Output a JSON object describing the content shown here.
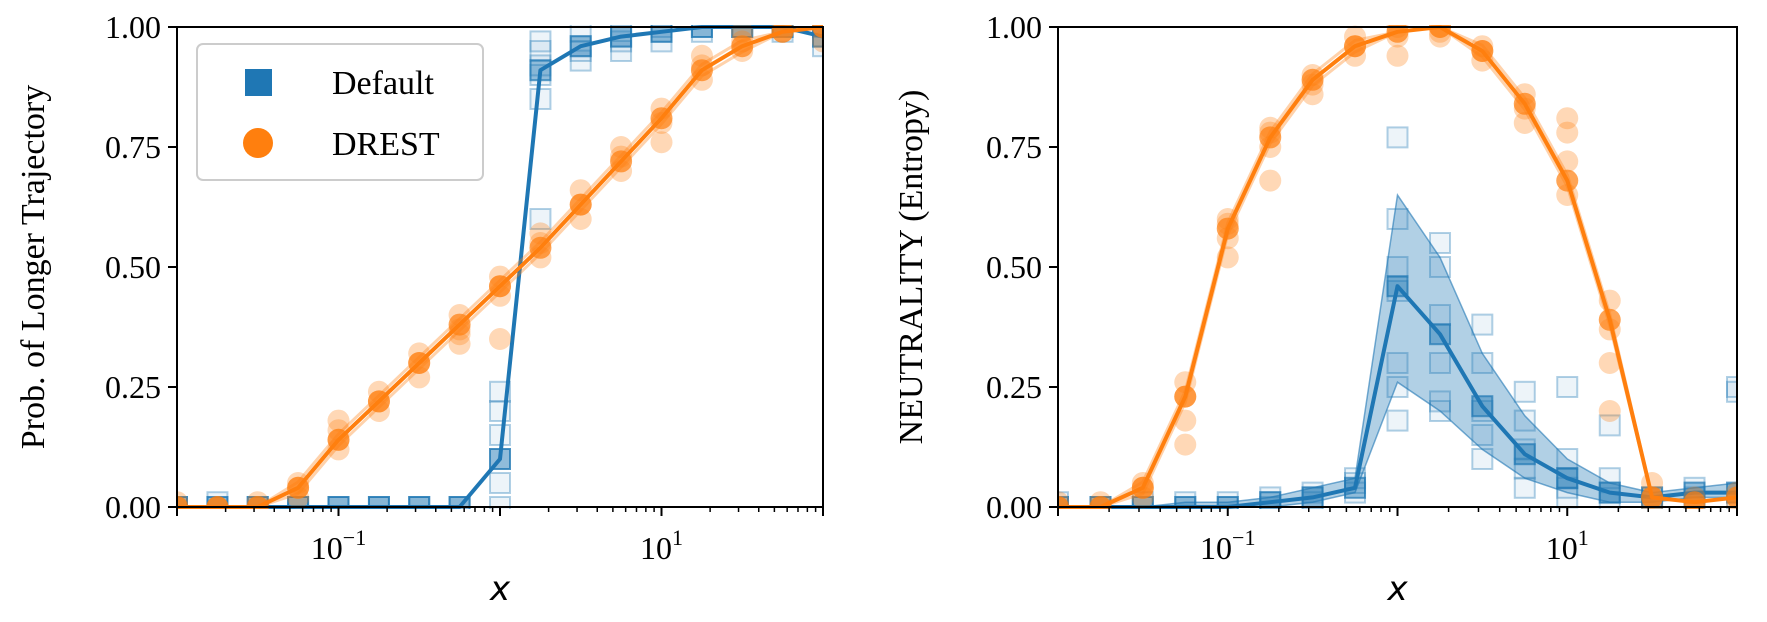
{
  "colors": {
    "default": "#1f77b4",
    "drest": "#ff7f0e"
  },
  "chart_data": [
    {
      "type": "line",
      "ylabel": "Prob. of Longer Trajectory",
      "xlabel": "x",
      "xscale": "log",
      "xlim": [
        0.01,
        100
      ],
      "ylim": [
        0.0,
        1.0
      ],
      "yticks": [
        "0.00",
        "0.25",
        "0.50",
        "0.75",
        "1.00"
      ],
      "xticks": [
        {
          "value": 0.1,
          "label": "10",
          "exp": "−1"
        },
        {
          "value": 10,
          "label": "10",
          "exp": "1"
        }
      ],
      "legend": {
        "position": "top-left",
        "entries": [
          "Default",
          "DREST"
        ]
      },
      "series": [
        {
          "name": "Default",
          "marker": "square",
          "x": [
            0.01,
            0.0178,
            0.0316,
            0.0562,
            0.1,
            0.178,
            0.316,
            0.562,
            1.0,
            1.78,
            3.16,
            5.62,
            10,
            17.8,
            31.6,
            56.2,
            100
          ],
          "mean": [
            0.0,
            0.0,
            0.0,
            0.0,
            0.0,
            0.0,
            0.0,
            0.0,
            0.1,
            0.91,
            0.96,
            0.98,
            0.99,
            1.0,
            1.0,
            1.0,
            0.98
          ],
          "scatter": [
            [
              0.0,
              0.0
            ],
            [
              0.0,
              0.01
            ],
            [
              0.0,
              0.0
            ],
            [
              0.0,
              0.0
            ],
            [
              0.0,
              0.0
            ],
            [
              0.0,
              0.0
            ],
            [
              0.0,
              0.0
            ],
            [
              0.0,
              0.0
            ],
            [
              0.0,
              0.05,
              0.1,
              0.15,
              0.2,
              0.24
            ],
            [
              0.9,
              0.92,
              0.95,
              0.97,
              0.85,
              0.6
            ],
            [
              0.93,
              0.96,
              0.99,
              0.95
            ],
            [
              0.95,
              0.97,
              1.0,
              0.98
            ],
            [
              0.97,
              0.99,
              1.0
            ],
            [
              0.99,
              1.0
            ],
            [
              1.0,
              1.0
            ],
            [
              0.99,
              1.0
            ],
            [
              0.96,
              0.98,
              1.0
            ]
          ]
        },
        {
          "name": "DREST",
          "marker": "circle",
          "x": [
            0.01,
            0.0178,
            0.0316,
            0.0562,
            0.1,
            0.178,
            0.316,
            0.562,
            1.0,
            1.78,
            3.16,
            5.62,
            10,
            17.8,
            31.6,
            56.2,
            100
          ],
          "mean": [
            0.0,
            0.0,
            0.0,
            0.04,
            0.14,
            0.22,
            0.3,
            0.38,
            0.46,
            0.54,
            0.63,
            0.72,
            0.81,
            0.91,
            0.96,
            0.99,
            1.0
          ],
          "scatter": [
            [
              0.0,
              0.01
            ],
            [
              0.0,
              0.0
            ],
            [
              0.0,
              0.01
            ],
            [
              0.02,
              0.04,
              0.05
            ],
            [
              0.12,
              0.14,
              0.16,
              0.18
            ],
            [
              0.2,
              0.22,
              0.24
            ],
            [
              0.27,
              0.3,
              0.32
            ],
            [
              0.34,
              0.37,
              0.4,
              0.36
            ],
            [
              0.44,
              0.46,
              0.48,
              0.35
            ],
            [
              0.52,
              0.55,
              0.57
            ],
            [
              0.6,
              0.63,
              0.66
            ],
            [
              0.7,
              0.73,
              0.75
            ],
            [
              0.76,
              0.8,
              0.83
            ],
            [
              0.89,
              0.92,
              0.94
            ],
            [
              0.95,
              0.97,
              0.99
            ],
            [
              0.99,
              1.0
            ],
            [
              0.97,
              1.0
            ]
          ]
        }
      ]
    },
    {
      "type": "line",
      "ylabel": "NEUTRALITY (Entropy)",
      "xlabel": "x",
      "xscale": "log",
      "xlim": [
        0.01,
        100
      ],
      "ylim": [
        0.0,
        1.0
      ],
      "yticks": [
        "0.00",
        "0.25",
        "0.50",
        "0.75",
        "1.00"
      ],
      "xticks": [
        {
          "value": 0.1,
          "label": "10",
          "exp": "−1"
        },
        {
          "value": 10,
          "label": "10",
          "exp": "1"
        }
      ],
      "series": [
        {
          "name": "Default",
          "marker": "square",
          "x": [
            0.01,
            0.0178,
            0.0316,
            0.0562,
            0.1,
            0.178,
            0.316,
            0.562,
            1.0,
            1.78,
            3.16,
            5.62,
            10,
            17.8,
            31.6,
            56.2,
            100
          ],
          "mean": [
            0.0,
            0.0,
            0.0,
            0.0,
            0.0,
            0.01,
            0.02,
            0.04,
            0.46,
            0.36,
            0.21,
            0.11,
            0.06,
            0.03,
            0.02,
            0.03,
            0.03
          ],
          "band_low": [
            0.0,
            0.0,
            0.0,
            0.0,
            0.0,
            0.0,
            0.01,
            0.03,
            0.26,
            0.2,
            0.12,
            0.06,
            0.03,
            0.01,
            0.01,
            0.02,
            0.02
          ],
          "band_high": [
            0.0,
            0.0,
            0.0,
            0.01,
            0.01,
            0.02,
            0.04,
            0.06,
            0.65,
            0.52,
            0.32,
            0.19,
            0.1,
            0.05,
            0.03,
            0.04,
            0.05
          ],
          "scatter": [
            [
              0.0,
              0.01
            ],
            [
              0.0,
              0.0
            ],
            [
              0.0,
              0.01
            ],
            [
              0.0,
              0.01
            ],
            [
              0.0,
              0.01
            ],
            [
              0.0,
              0.01,
              0.02
            ],
            [
              0.01,
              0.02,
              0.03
            ],
            [
              0.03,
              0.05,
              0.06
            ],
            [
              0.18,
              0.3,
              0.45,
              0.6,
              0.77,
              0.25,
              0.5
            ],
            [
              0.2,
              0.3,
              0.4,
              0.5,
              0.55,
              0.22
            ],
            [
              0.1,
              0.15,
              0.2,
              0.3,
              0.38
            ],
            [
              0.04,
              0.08,
              0.12,
              0.18,
              0.24
            ],
            [
              0.02,
              0.04,
              0.06,
              0.1,
              0.25
            ],
            [
              0.01,
              0.03,
              0.06,
              0.17
            ],
            [
              0.0,
              0.02
            ],
            [
              0.0,
              0.02,
              0.04
            ],
            [
              0.24,
              0.25,
              0.0
            ]
          ]
        },
        {
          "name": "DREST",
          "marker": "circle",
          "x": [
            0.01,
            0.0178,
            0.0316,
            0.0562,
            0.1,
            0.178,
            0.316,
            0.562,
            1.0,
            1.78,
            3.16,
            5.62,
            10,
            17.8,
            31.6,
            56.2,
            100
          ],
          "mean": [
            0.0,
            0.0,
            0.04,
            0.23,
            0.58,
            0.77,
            0.89,
            0.96,
            0.99,
            1.0,
            0.95,
            0.84,
            0.68,
            0.39,
            0.02,
            0.01,
            0.02
          ],
          "scatter": [
            [
              0.0,
              0.01
            ],
            [
              0.0,
              0.01
            ],
            [
              0.02,
              0.04,
              0.05
            ],
            [
              0.13,
              0.18,
              0.23,
              0.26
            ],
            [
              0.52,
              0.56,
              0.59,
              0.6
            ],
            [
              0.68,
              0.75,
              0.78,
              0.79
            ],
            [
              0.86,
              0.88,
              0.9
            ],
            [
              0.94,
              0.96,
              0.98
            ],
            [
              0.94,
              0.98,
              1.0
            ],
            [
              0.98,
              0.99,
              1.0
            ],
            [
              0.93,
              0.95,
              0.96
            ],
            [
              0.8,
              0.83,
              0.86
            ],
            [
              0.65,
              0.72,
              0.78,
              0.81
            ],
            [
              0.3,
              0.37,
              0.43,
              0.2
            ],
            [
              0.0,
              0.02,
              0.05
            ],
            [
              0.0,
              0.02
            ],
            [
              0.01,
              0.03
            ]
          ]
        }
      ]
    }
  ]
}
